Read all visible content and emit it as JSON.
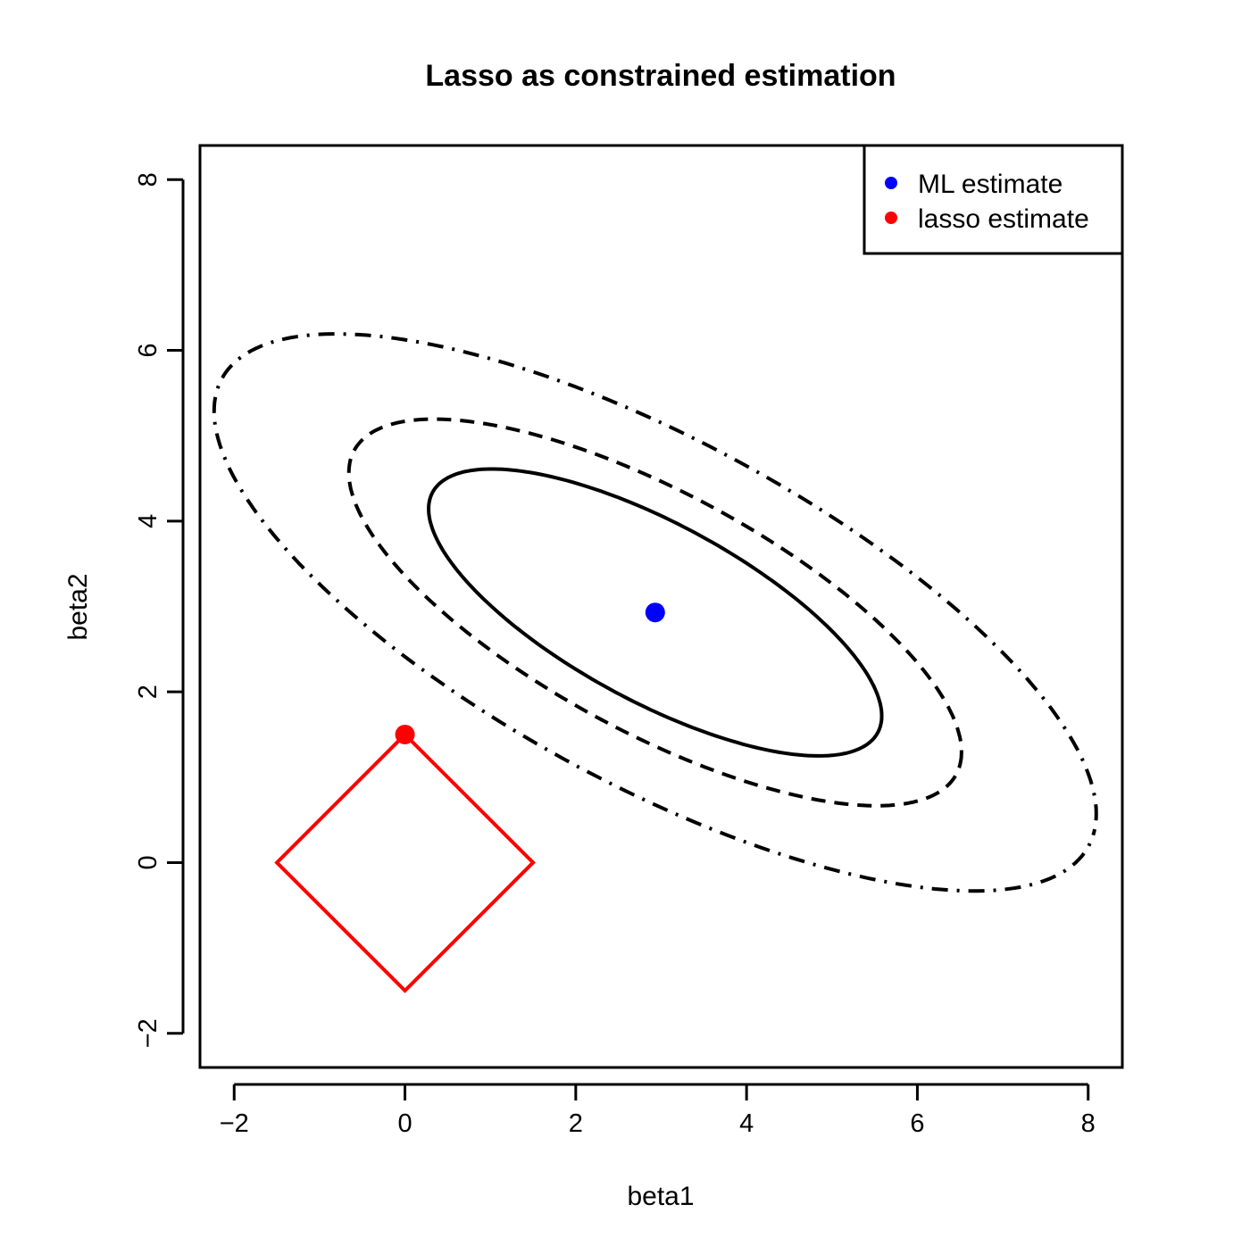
{
  "chart_data": {
    "type": "scatter",
    "title": "Lasso as constrained estimation",
    "xlabel": "beta1",
    "ylabel": "beta2",
    "xlim": [
      -2.4,
      8.4
    ],
    "ylim": [
      -2.4,
      8.4
    ],
    "x_ticks": [
      -2,
      0,
      2,
      4,
      6,
      8
    ],
    "y_ticks": [
      -2,
      0,
      2,
      4,
      6,
      8
    ],
    "x_tick_labels": [
      "−2",
      "0",
      "2",
      "4",
      "6",
      "8"
    ],
    "y_tick_labels": [
      "−2",
      "0",
      "2",
      "4",
      "6",
      "8"
    ],
    "grid": false,
    "legend_position": "top-right",
    "legend": [
      {
        "label": "ML estimate",
        "color": "#0000ff",
        "series": "ml_estimate"
      },
      {
        "label": "lasso estimate",
        "color": "#ff0000",
        "series": "lasso_estimate"
      }
    ],
    "points": [
      {
        "series": "ml_estimate",
        "x": 2.93,
        "y": 2.93,
        "color": "#0000ff"
      },
      {
        "series": "lasso_estimate",
        "x": 0.0,
        "y": 1.5,
        "color": "#ff0000"
      }
    ],
    "constraint_region": {
      "shape": "l1-ball",
      "color": "#ff0000",
      "vertices": [
        [
          1.5,
          0
        ],
        [
          0,
          1.5
        ],
        [
          -1.5,
          0
        ],
        [
          0,
          -1.5
        ]
      ]
    },
    "contours": [
      {
        "linestyle": "solid",
        "color": "#000000",
        "center": [
          2.93,
          2.93
        ],
        "a": [
          2.64,
          -1.32
        ],
        "b": [
          0.26,
          1.04
        ]
      },
      {
        "linestyle": "dashed",
        "color": "#000000",
        "center": [
          2.93,
          2.93
        ],
        "a": [
          3.57,
          -1.78
        ],
        "b": [
          0.35,
          1.4
        ]
      },
      {
        "linestyle": "dotdash",
        "color": "#000000",
        "center": [
          2.93,
          2.93
        ],
        "a": [
          5.14,
          -2.57
        ],
        "b": [
          0.51,
          2.01
        ]
      }
    ]
  }
}
